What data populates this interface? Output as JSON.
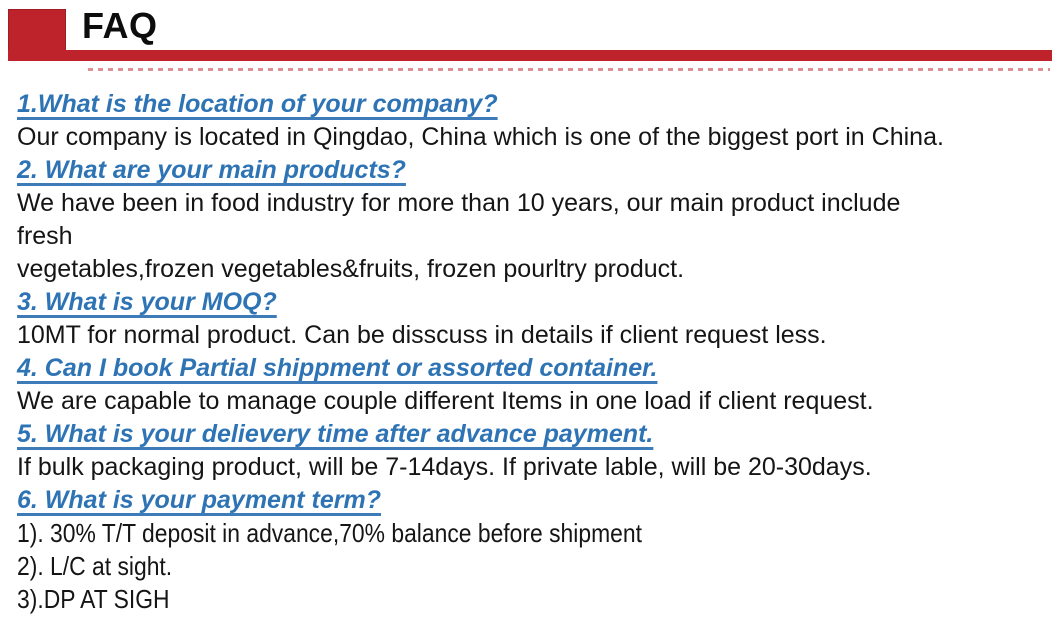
{
  "header": {
    "title": "FAQ"
  },
  "colors": {
    "accent_red": "#be232b",
    "question_blue": "#2e74b5",
    "body_text": "#151515"
  },
  "faq": {
    "items": [
      {
        "q": "1.What is the location of your company?",
        "a": [
          "Our company is located in Qingdao, China which is one of the biggest port in China."
        ]
      },
      {
        "q": "2. What are your main products?",
        "a": [
          "We have been in food industry for more than 10 years, our main product include",
          "fresh",
          "vegetables,frozen vegetables&fruits, frozen pourltry product."
        ]
      },
      {
        "q": "3. What is your MOQ?",
        "a": [
          "10MT for normal product. Can be disscuss in details if client request less."
        ]
      },
      {
        "q": "4. Can I book Partial shippment or assorted container.",
        "a": [
          "We are capable to manage couple different Items in one load if client request."
        ]
      },
      {
        "q": "5. What is your delievery time after advance payment.",
        "a": [
          "If bulk packaging product, will be 7-14days. If private lable, will be 20-30days."
        ]
      },
      {
        "q": "6. What is your payment term?",
        "a": [
          "1). 30% T/T deposit in advance,70% balance before shipment",
          "2). L/C at sight.",
          "3).DP AT SIGH"
        ]
      }
    ]
  }
}
